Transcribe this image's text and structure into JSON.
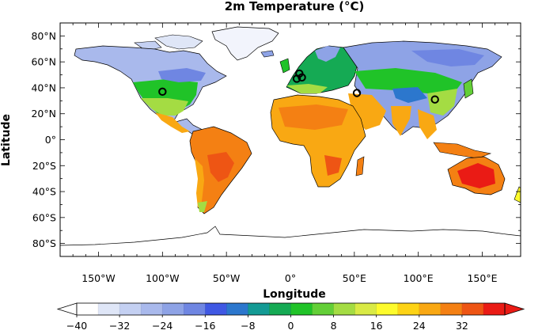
{
  "title": "2m Temperature (°C)",
  "x_axis_label": "Longitude",
  "y_axis_label": "Latitude",
  "x_ticks": [
    "150°W",
    "100°W",
    "50°W",
    "0°",
    "50°E",
    "100°E",
    "150°E"
  ],
  "y_ticks": [
    "80°N",
    "60°N",
    "40°N",
    "20°N",
    "0°",
    "20°S",
    "40°S",
    "60°S",
    "80°S"
  ],
  "colorbar": {
    "labels": [
      "−40",
      "−32",
      "−24",
      "−16",
      "−8",
      "0",
      "8",
      "16",
      "24",
      "32"
    ],
    "colors": [
      "#ffffff",
      "#dfe6f7",
      "#c4d0f2",
      "#a9b9ec",
      "#8ea3e6",
      "#6f86e2",
      "#3f58e3",
      "#2c77cd",
      "#139a94",
      "#15aa54",
      "#20c328",
      "#63cf37",
      "#a4dc43",
      "#d9ea45",
      "#fdfb2c",
      "#fdd315",
      "#f9a813",
      "#f48013",
      "#ee5514",
      "#ea1b15"
    ],
    "min_label": "−40",
    "max_label": "32"
  },
  "markers": [
    {
      "name": "north-america-site",
      "lon": -100,
      "lat": 37
    },
    {
      "name": "europe-site-1",
      "lon": 7,
      "lat": 51
    },
    {
      "name": "europe-site-2",
      "lon": 9,
      "lat": 48
    },
    {
      "name": "europe-site-3",
      "lon": 5,
      "lat": 47
    },
    {
      "name": "middle-east-site",
      "lon": 52,
      "lat": 36
    },
    {
      "name": "east-asia-site",
      "lon": 113,
      "lat": 31
    }
  ],
  "extent": {
    "lon": [
      -180,
      180
    ],
    "lat": [
      -90,
      90
    ]
  }
}
